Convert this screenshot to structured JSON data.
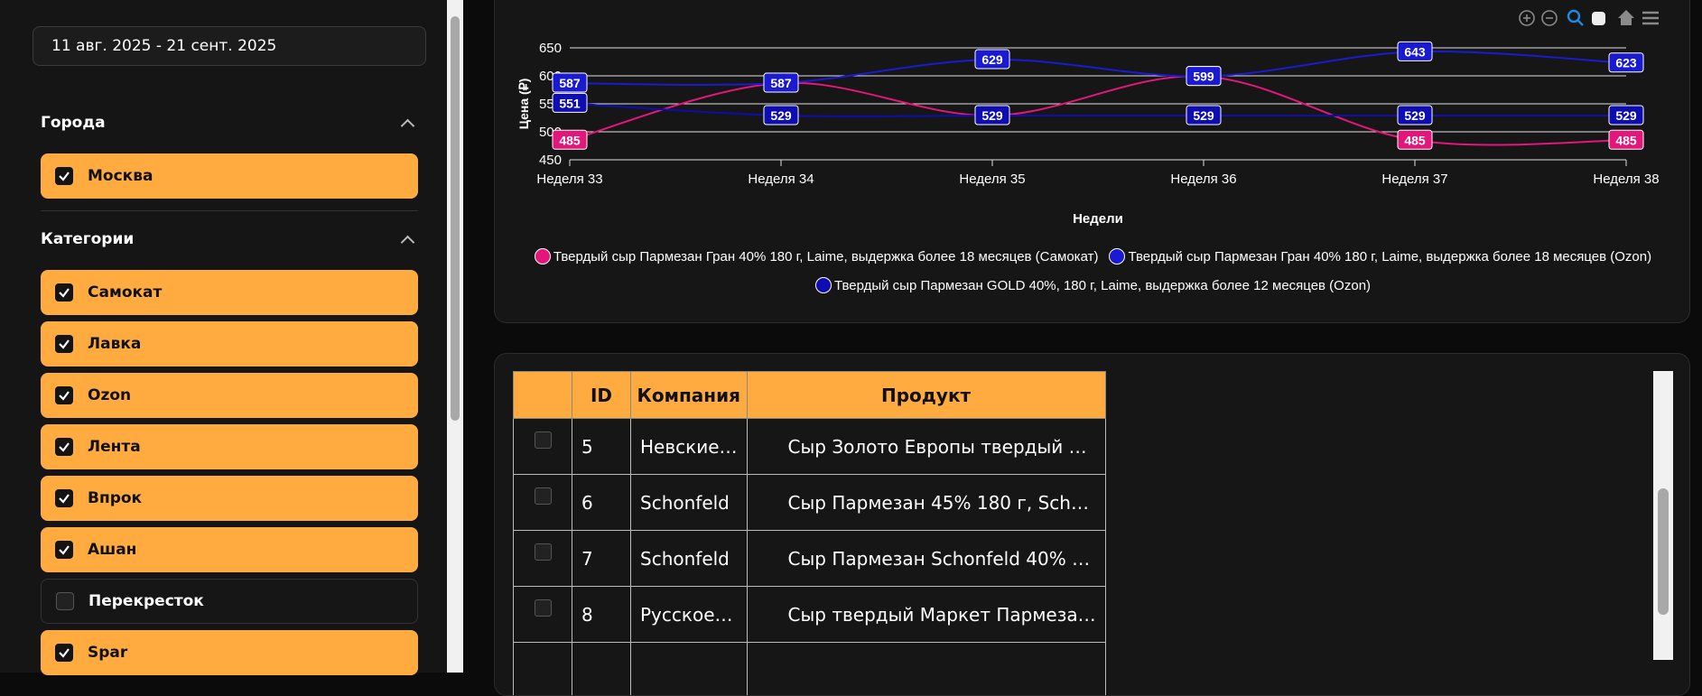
{
  "sidebar": {
    "date_range": "11 авг. 2025 - 21 сент. 2025",
    "sections": [
      {
        "title": "Города",
        "items": [
          {
            "label": "Москва",
            "checked": true
          }
        ]
      },
      {
        "title": "Категории",
        "items": [
          {
            "label": "Самокат",
            "checked": true
          },
          {
            "label": "Лавка",
            "checked": true
          },
          {
            "label": "Ozon",
            "checked": true
          },
          {
            "label": "Лента",
            "checked": true
          },
          {
            "label": "Впрок",
            "checked": true
          },
          {
            "label": "Ашан",
            "checked": true
          },
          {
            "label": "Перекресток",
            "checked": false
          },
          {
            "label": "Spar",
            "checked": true
          }
        ]
      }
    ]
  },
  "chart_data": {
    "type": "line",
    "x_label": "Недели",
    "y_label": "Цена (₽)",
    "categories": [
      "Неделя 33",
      "Неделя 34",
      "Неделя 35",
      "Неделя 36",
      "Неделя 37",
      "Неделя 38"
    ],
    "series": [
      {
        "name": "Твердый сыр Пармезан Гран 40% 180 г, Laime, выдержка более 18 месяцев (Самокат)",
        "color": "#e3177a",
        "values": [
          485,
          587,
          529,
          599,
          485,
          485
        ]
      },
      {
        "name": "Твердый сыр Пармезан Гран 40% 180 г, Laime, выдержка более 18 месяцев (Ozon)",
        "color": "#1a1ad0",
        "values": [
          587,
          587,
          629,
          599,
          643,
          623
        ]
      },
      {
        "name": "Твердый сыр Пармезан GOLD 40%, 180 г, Laime, выдержка более 12 месяцев (Ozon)",
        "color": "#0d0db0",
        "values": [
          551,
          529,
          529,
          529,
          529,
          529
        ]
      }
    ],
    "ylim": [
      450,
      650
    ],
    "yticks": [
      450,
      500,
      550,
      600,
      650
    ],
    "grid": true,
    "legend": "bottom"
  },
  "table": {
    "headers": [
      "ID",
      "Компания",
      "Продукт"
    ],
    "rows": [
      [
        "5",
        "Невские…",
        "Сыр Золото Европы твердый …"
      ],
      [
        "6",
        "Schonfeld",
        "Сыр Пармезан 45% 180 г, Sch…"
      ],
      [
        "7",
        "Schonfeld",
        "Сыр Пармезан Schonfeld 40% …"
      ],
      [
        "8",
        "Русское…",
        "Сыр твердый Маркет Пармеза…"
      ]
    ]
  }
}
